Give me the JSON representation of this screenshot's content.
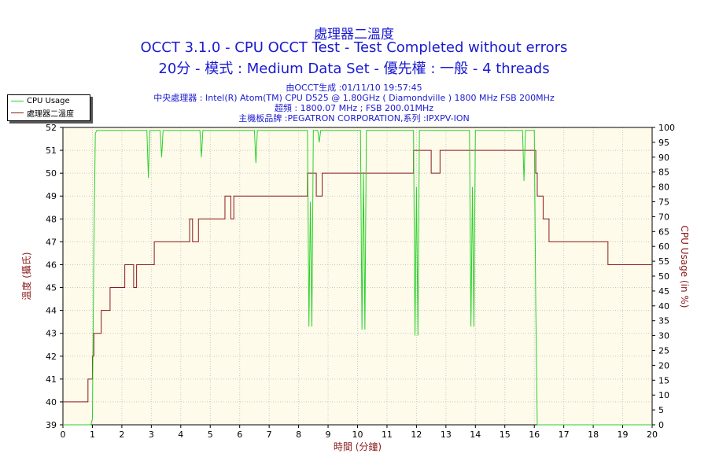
{
  "header": {
    "title": "處理器二溫度",
    "subtitle": "OCCT 3.1.0 - CPU OCCT Test - Test Completed without errors",
    "subtitle2": "20分 - 模式 : Medium Data Set - 優先權 : 一般 - 4 threads",
    "info": [
      "由OCCT生成 :01/11/10 19:57:45",
      "中央處理器 : Intel(R) Atom(TM) CPU D525 @ 1.80GHz ( Diamondville ) 1800 MHz FSB 200MHz",
      "超頻 : 1800.07 MHz ; FSB 200.01MHz",
      "主機板品牌 :PEGATRON CORPORATION,系列 :IPXPV-ION"
    ]
  },
  "legend": {
    "items": [
      {
        "label": "CPU Usage",
        "color": "#2ad02a"
      },
      {
        "label": "處理器二溫度",
        "color": "#8b1a1a"
      }
    ]
  },
  "chart_data": {
    "type": "line",
    "xlabel": "時間 (分鐘)",
    "ylabel_left": "溫度 (攝氏)",
    "ylabel_right": "CPU Usage (in %)",
    "xlim": [
      0,
      20
    ],
    "ylim_left": [
      39,
      52
    ],
    "ylim_right": [
      0,
      100
    ],
    "x_ticks": [
      0,
      1,
      2,
      3,
      4,
      5,
      6,
      7,
      8,
      9,
      10,
      11,
      12,
      13,
      14,
      15,
      16,
      17,
      18,
      19,
      20
    ],
    "y_ticks_left": [
      39,
      40,
      41,
      42,
      43,
      44,
      45,
      46,
      47,
      48,
      49,
      50,
      51,
      52
    ],
    "y_ticks_right": [
      0,
      5,
      10,
      15,
      20,
      25,
      30,
      35,
      40,
      45,
      50,
      55,
      60,
      65,
      70,
      75,
      80,
      85,
      90,
      95,
      100
    ],
    "grid": true,
    "legend_position": "top-left",
    "colors": {
      "plot_bg": "#fffbeb",
      "grid": "#c8c8c8",
      "temp": "#8b1a1a",
      "cpu": "#2ad02a",
      "axis_text": "#8b1a1a"
    },
    "series": [
      {
        "name": "處理器二溫度",
        "axis": "left",
        "x": [
          0,
          0.8,
          0.85,
          0.95,
          1.0,
          1.05,
          1.1,
          1.2,
          1.3,
          1.45,
          1.6,
          1.7,
          1.8,
          2.0,
          2.1,
          2.4,
          2.5,
          2.7,
          2.8,
          3.1,
          3.2,
          3.4,
          3.6,
          3.9,
          4.1,
          4.3,
          4.4,
          4.6,
          4.8,
          5.1,
          5.3,
          5.5,
          5.7,
          5.8,
          6.0,
          6.2,
          6.5,
          6.8,
          7.0,
          7.2,
          7.5,
          7.8,
          8.1,
          8.3,
          8.6,
          8.8,
          9.0,
          9.3,
          9.6,
          9.9,
          10.2,
          10.5,
          10.8,
          11.1,
          11.4,
          11.7,
          11.9,
          12.2,
          12.5,
          12.8,
          13.1,
          13.4,
          13.7,
          14.0,
          14.3,
          14.6,
          14.9,
          15.2,
          15.5,
          15.8,
          16.0,
          16.05,
          16.1,
          16.2,
          16.3,
          16.4,
          16.5,
          16.6,
          16.8,
          17.0,
          17.3,
          17.6,
          17.9,
          18.2,
          18.5,
          18.8,
          19.0,
          19.3,
          19.6,
          19.9,
          20.0
        ],
        "values": [
          40,
          40,
          41,
          41,
          42,
          43,
          43,
          43,
          44,
          44,
          45,
          45,
          45,
          45,
          46,
          45,
          46,
          46,
          46,
          47,
          47,
          47,
          47,
          47,
          47,
          48,
          47,
          48,
          48,
          48,
          48,
          49,
          48,
          49,
          49,
          49,
          49,
          49,
          49,
          49,
          49,
          49,
          49,
          50,
          49,
          50,
          50,
          50,
          50,
          50,
          50,
          50,
          50,
          50,
          50,
          50,
          51,
          51,
          50,
          51,
          51,
          51,
          51,
          51,
          51,
          51,
          51,
          51,
          51,
          51,
          51,
          50,
          49,
          49,
          48,
          48,
          47,
          47,
          47,
          47,
          47,
          47,
          47,
          47,
          46,
          46,
          46,
          46,
          46,
          46,
          46
        ]
      },
      {
        "name": "CPU Usage",
        "axis": "right",
        "x": [
          0,
          0.95,
          1.0,
          1.05,
          1.1,
          1.15,
          2.85,
          2.9,
          2.95,
          3.3,
          3.35,
          3.4,
          4.65,
          4.7,
          4.75,
          6.5,
          6.55,
          6.6,
          8.3,
          8.35,
          8.4,
          8.45,
          8.5,
          8.65,
          8.7,
          8.75,
          10.1,
          10.15,
          10.2,
          10.25,
          10.3,
          11.9,
          11.95,
          12.0,
          12.05,
          12.1,
          13.8,
          13.85,
          13.9,
          13.95,
          14.0,
          15.6,
          15.65,
          15.7,
          16.0,
          16.05,
          16.1,
          20.0
        ],
        "values": [
          0,
          0,
          2,
          60,
          98,
          99,
          99,
          83,
          99,
          99,
          90,
          99,
          99,
          90,
          99,
          99,
          88,
          99,
          99,
          33,
          75,
          33,
          99,
          99,
          95,
          99,
          99,
          32,
          85,
          32,
          99,
          99,
          30,
          80,
          30,
          99,
          99,
          33,
          80,
          33,
          99,
          99,
          82,
          99,
          99,
          40,
          0,
          0
        ]
      }
    ]
  }
}
